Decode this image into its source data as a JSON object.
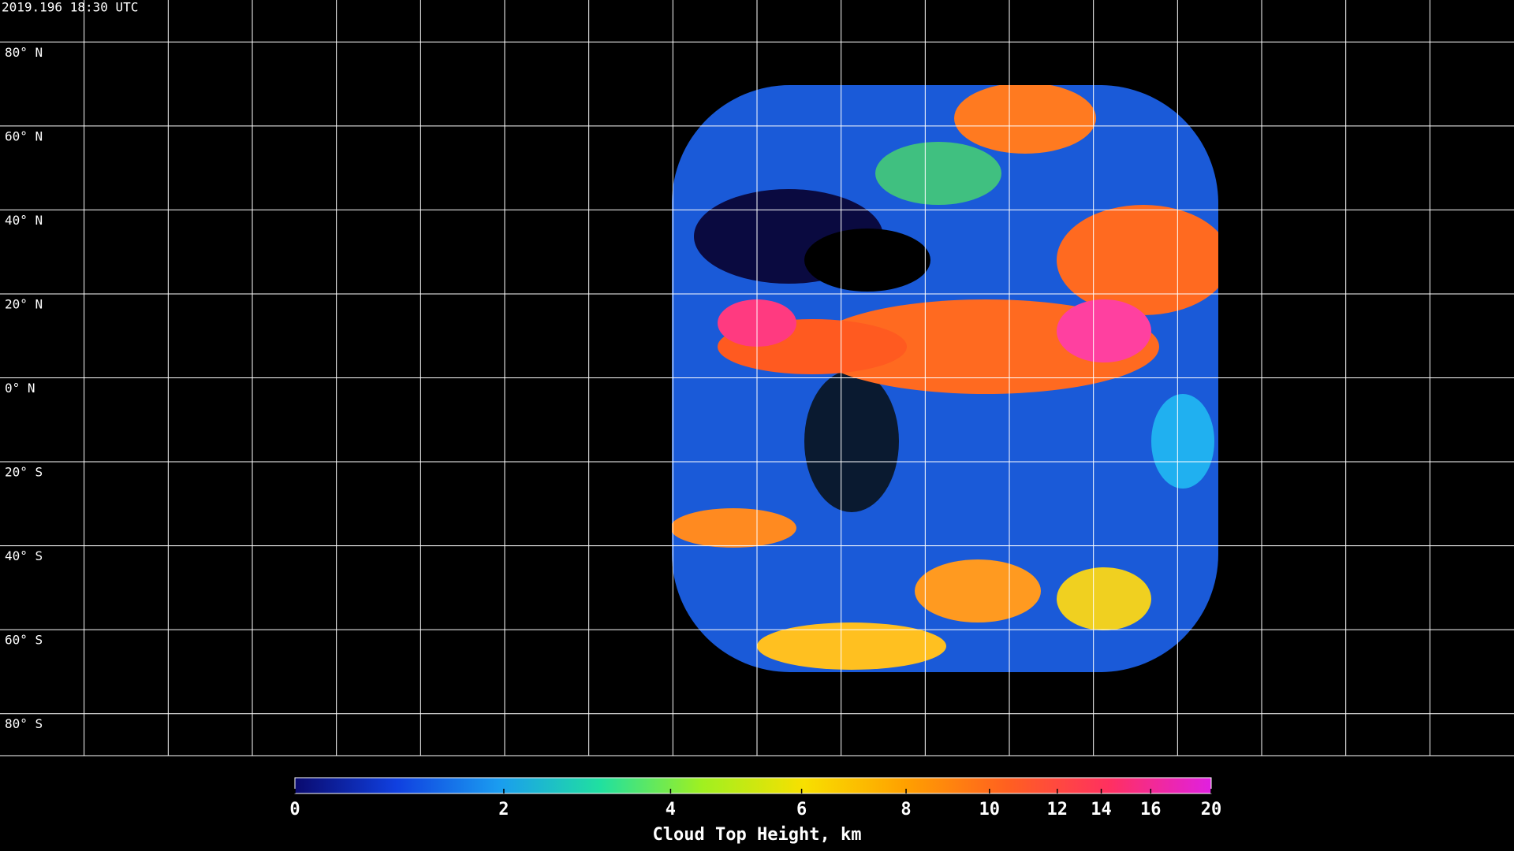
{
  "header": {
    "timestamp": "2019.196 18:30 UTC"
  },
  "map": {
    "latitude_labels": [
      {
        "value": 80,
        "label": "80° N"
      },
      {
        "value": 60,
        "label": "60° N"
      },
      {
        "value": 40,
        "label": "40° N"
      },
      {
        "value": 20,
        "label": "20° N"
      },
      {
        "value": 0,
        "label": "0° N"
      },
      {
        "value": -20,
        "label": "20° S"
      },
      {
        "value": -40,
        "label": "40° S"
      },
      {
        "value": -60,
        "label": "60° S"
      },
      {
        "value": -80,
        "label": "80° S"
      }
    ],
    "grid_color": "#ffffff",
    "coastline_color": "#ffffff",
    "background": "#000000"
  },
  "colorbar": {
    "label": "Cloud Top Height, km",
    "ticks": [
      0,
      2,
      4,
      6,
      8,
      10,
      12,
      14,
      16,
      20
    ],
    "colors": [
      "#0a0a6e",
      "#1040e0",
      "#1a9cf0",
      "#20e0a0",
      "#a0f020",
      "#f8e000",
      "#ffa000",
      "#ff6020",
      "#ff3060",
      "#e020e0"
    ]
  }
}
